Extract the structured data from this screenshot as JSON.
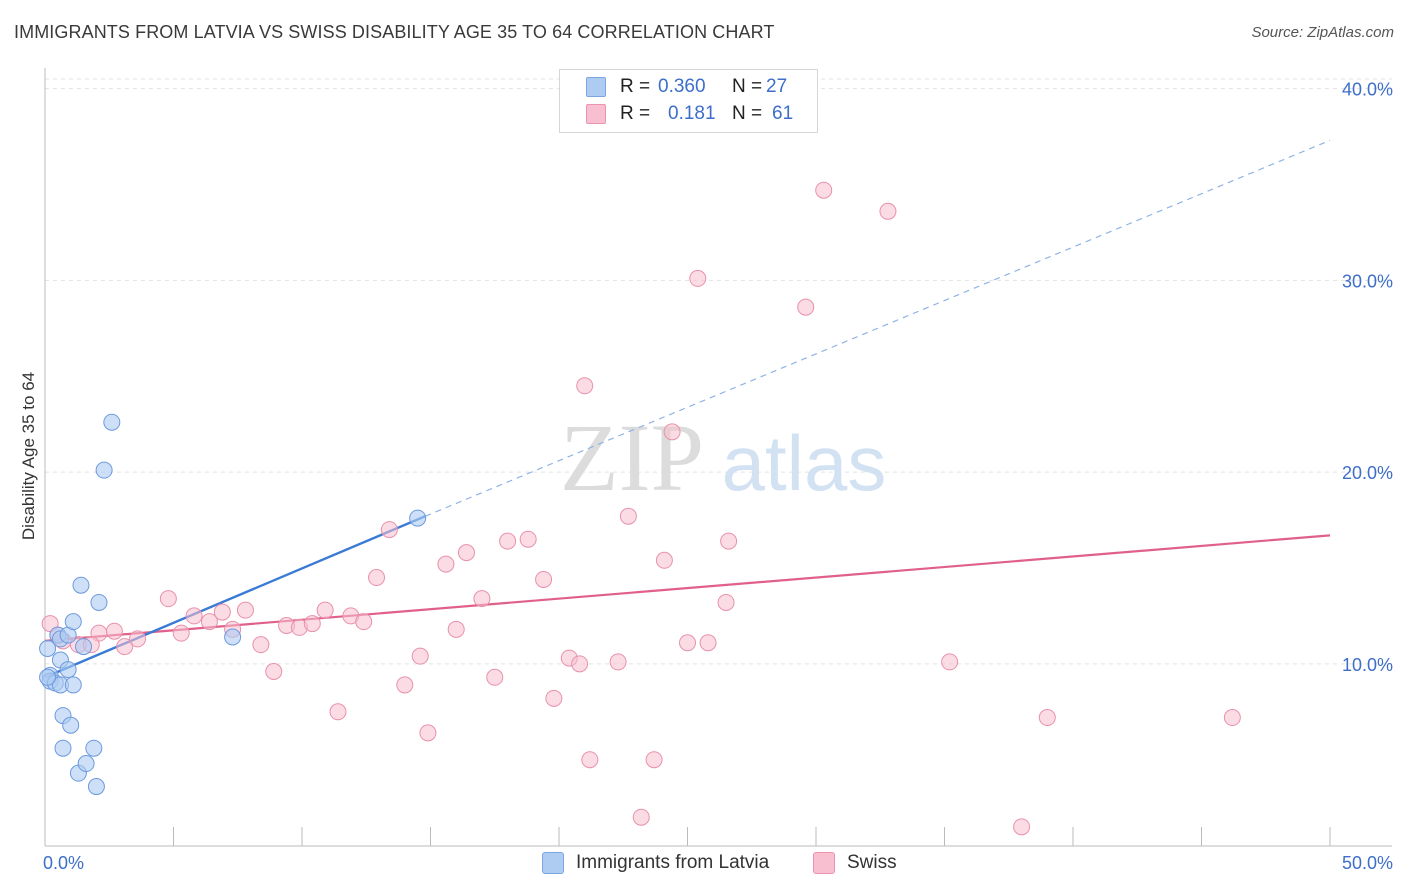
{
  "title": "IMMIGRANTS FROM LATVIA VS SWISS DISABILITY AGE 35 TO 64 CORRELATION CHART",
  "source": "Source: ZipAtlas.com",
  "watermark": {
    "zip": "ZIP",
    "atlas": "atlas"
  },
  "legend": {
    "rows": [
      {
        "r_label": "R =",
        "r_value": "0.360",
        "n_label": "N =",
        "n_value": "27",
        "color": "#aecbf2"
      },
      {
        "r_label": "R =",
        "r_value": "0.181",
        "n_label": "N =",
        "n_value": "61",
        "color": "#f7bfd0"
      }
    ]
  },
  "bottom_legend": [
    {
      "label": "Immigrants from Latvia",
      "color": "#aecbf2"
    },
    {
      "label": "Swiss",
      "color": "#f7bfd0"
    }
  ],
  "chart_data": {
    "type": "scatter",
    "title": "IMMIGRANTS FROM LATVIA VS SWISS DISABILITY AGE 35 TO 64 CORRELATION CHART",
    "xlabel": "",
    "ylabel": "Disability Age 35 to 64",
    "xlim": [
      0,
      50
    ],
    "ylim": [
      0.5,
      40.5
    ],
    "x_tick_labels": [
      "0.0%",
      "50.0%"
    ],
    "y_ticks": [
      10,
      20,
      30,
      40
    ],
    "y_tick_labels": [
      "10.0%",
      "20.0%",
      "30.0%",
      "40.0%"
    ],
    "grid": true,
    "legend_position": "top-center",
    "series": [
      {
        "name": "Immigrants from Latvia",
        "color": "#3a7bd5",
        "fill": "#aecbf2",
        "r": 0.36,
        "n": 27,
        "points": [
          [
            0.1,
            10.8
          ],
          [
            0.2,
            9.4
          ],
          [
            0.2,
            9.1
          ],
          [
            0.4,
            9.0
          ],
          [
            0.5,
            11.5
          ],
          [
            0.6,
            10.2
          ],
          [
            0.6,
            11.3
          ],
          [
            0.6,
            8.9
          ],
          [
            0.7,
            7.3
          ],
          [
            0.7,
            5.6
          ],
          [
            0.9,
            9.7
          ],
          [
            0.9,
            11.5
          ],
          [
            1.0,
            6.8
          ],
          [
            1.1,
            8.9
          ],
          [
            1.1,
            12.2
          ],
          [
            1.3,
            4.3
          ],
          [
            1.4,
            14.1
          ],
          [
            1.5,
            10.9
          ],
          [
            1.6,
            4.8
          ],
          [
            1.9,
            5.6
          ],
          [
            2.0,
            3.6
          ],
          [
            2.1,
            13.2
          ],
          [
            2.3,
            20.1
          ],
          [
            2.6,
            22.6
          ],
          [
            7.3,
            11.4
          ],
          [
            14.5,
            17.6
          ],
          [
            0.1,
            9.3
          ]
        ],
        "trend": {
          "x0": 0,
          "y0": 9.3,
          "x1": 14.8,
          "y1": 17.7,
          "dashed_to": {
            "x": 50,
            "y": 37.3
          }
        }
      },
      {
        "name": "Swiss",
        "color": "#e0608a",
        "fill": "#f7bfd0",
        "r": 0.181,
        "n": 61,
        "points": [
          [
            0.2,
            12.1
          ],
          [
            0.7,
            11.2
          ],
          [
            1.3,
            11.0
          ],
          [
            2.1,
            11.6
          ],
          [
            2.7,
            11.7
          ],
          [
            3.1,
            10.9
          ],
          [
            3.6,
            11.3
          ],
          [
            4.8,
            13.4
          ],
          [
            5.3,
            11.6
          ],
          [
            5.8,
            12.5
          ],
          [
            6.4,
            12.2
          ],
          [
            6.9,
            12.7
          ],
          [
            7.3,
            11.8
          ],
          [
            7.8,
            12.8
          ],
          [
            8.4,
            11.0
          ],
          [
            8.9,
            9.6
          ],
          [
            9.4,
            12.0
          ],
          [
            9.9,
            11.9
          ],
          [
            10.4,
            12.1
          ],
          [
            10.9,
            12.8
          ],
          [
            11.4,
            7.5
          ],
          [
            11.9,
            12.5
          ],
          [
            12.4,
            12.2
          ],
          [
            12.9,
            14.5
          ],
          [
            13.4,
            17.0
          ],
          [
            14.0,
            8.9
          ],
          [
            14.6,
            10.4
          ],
          [
            14.9,
            6.4
          ],
          [
            15.6,
            15.2
          ],
          [
            16.0,
            11.8
          ],
          [
            16.4,
            15.8
          ],
          [
            17.0,
            13.4
          ],
          [
            17.5,
            9.3
          ],
          [
            18.0,
            16.4
          ],
          [
            18.8,
            16.5
          ],
          [
            19.4,
            14.4
          ],
          [
            19.8,
            8.2
          ],
          [
            20.4,
            10.3
          ],
          [
            20.8,
            10.0
          ],
          [
            21.0,
            24.5
          ],
          [
            21.2,
            5.0
          ],
          [
            22.3,
            10.1
          ],
          [
            22.7,
            17.7
          ],
          [
            23.2,
            2.0
          ],
          [
            23.7,
            5.0
          ],
          [
            24.1,
            15.4
          ],
          [
            24.4,
            22.1
          ],
          [
            25.0,
            11.1
          ],
          [
            25.4,
            30.1
          ],
          [
            25.8,
            11.1
          ],
          [
            26.5,
            13.2
          ],
          [
            26.6,
            16.4
          ],
          [
            29.6,
            28.6
          ],
          [
            30.3,
            34.7
          ],
          [
            32.8,
            33.6
          ],
          [
            35.2,
            10.1
          ],
          [
            38.0,
            1.5
          ],
          [
            39.0,
            7.2
          ],
          [
            46.2,
            7.2
          ],
          [
            0.5,
            11.5
          ],
          [
            1.8,
            11.0
          ]
        ],
        "trend": {
          "x0": 0,
          "y0": 11.2,
          "x1": 50,
          "y1": 16.7
        }
      }
    ]
  }
}
